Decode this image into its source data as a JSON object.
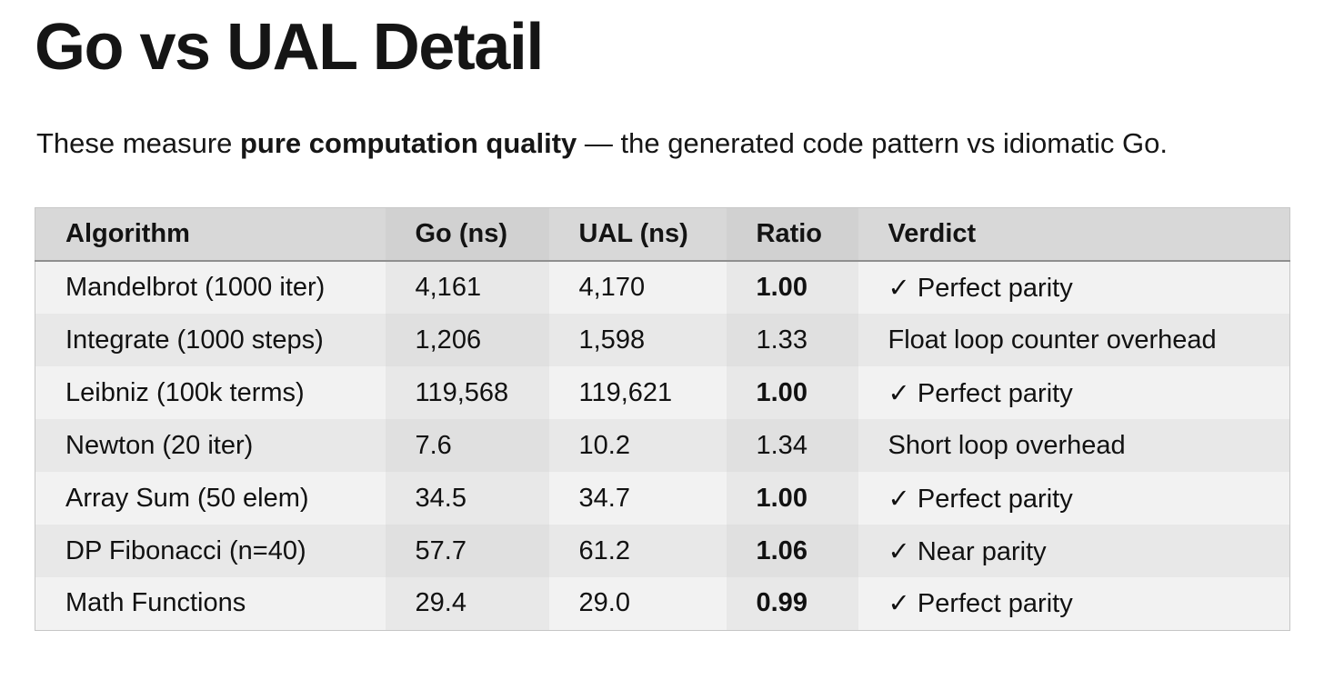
{
  "page": {
    "title": "Go vs UAL Detail",
    "subtitle_prefix": "These measure ",
    "subtitle_bold": "pure computation quality",
    "subtitle_suffix": " — the generated code pattern vs idiomatic Go."
  },
  "colors": {
    "background": "#ffffff",
    "text": "#111111",
    "header_bg": "#d8d8d8",
    "header_band_bg": "#d1d1d1",
    "row_odd_bg": "#f2f2f2",
    "row_odd_band_bg": "#e8e8e8",
    "row_even_bg": "#e8e8e8",
    "row_even_band_bg": "#e0e0e0",
    "header_rule": "#8f8f8f"
  },
  "table": {
    "columns": [
      "Algorithm",
      "Go (ns)",
      "UAL (ns)",
      "Ratio",
      "Verdict"
    ],
    "rows": [
      {
        "algorithm": "Mandelbrot (1000 iter)",
        "go_ns": "4,161",
        "ual_ns": "4,170",
        "ratio": "1.00",
        "ratio_bold": true,
        "verdict": "✓ Perfect parity"
      },
      {
        "algorithm": "Integrate (1000 steps)",
        "go_ns": "1,206",
        "ual_ns": "1,598",
        "ratio": "1.33",
        "ratio_bold": false,
        "verdict": "Float loop counter overhead"
      },
      {
        "algorithm": "Leibniz (100k terms)",
        "go_ns": "119,568",
        "ual_ns": "119,621",
        "ratio": "1.00",
        "ratio_bold": true,
        "verdict": "✓ Perfect parity"
      },
      {
        "algorithm": "Newton (20 iter)",
        "go_ns": "7.6",
        "ual_ns": "10.2",
        "ratio": "1.34",
        "ratio_bold": false,
        "verdict": "Short loop overhead"
      },
      {
        "algorithm": "Array Sum (50 elem)",
        "go_ns": "34.5",
        "ual_ns": "34.7",
        "ratio": "1.00",
        "ratio_bold": true,
        "verdict": "✓ Perfect parity"
      },
      {
        "algorithm": "DP Fibonacci (n=40)",
        "go_ns": "57.7",
        "ual_ns": "61.2",
        "ratio": "1.06",
        "ratio_bold": true,
        "verdict": "✓ Near parity"
      },
      {
        "algorithm": "Math Functions",
        "go_ns": "29.4",
        "ual_ns": "29.0",
        "ratio": "0.99",
        "ratio_bold": true,
        "verdict": "✓ Perfect parity"
      }
    ]
  }
}
